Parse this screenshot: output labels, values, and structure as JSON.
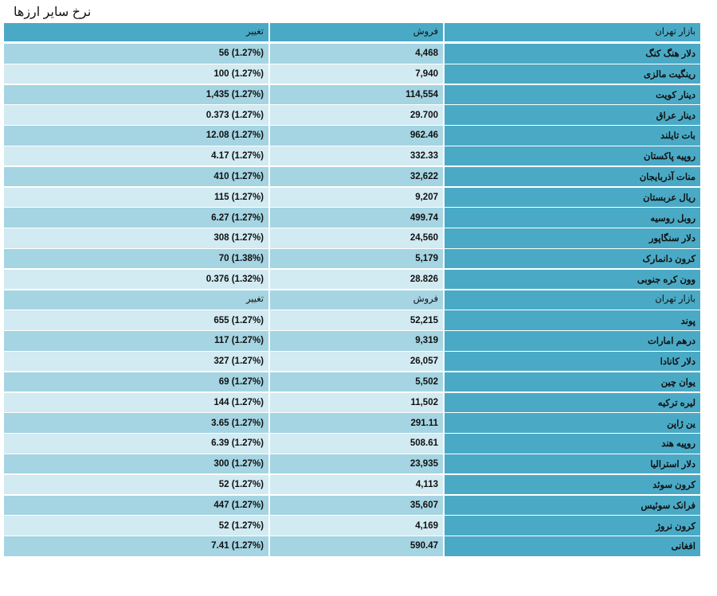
{
  "page": {
    "title": "نرخ سایر ارزها"
  },
  "table": {
    "header": {
      "market": "بازار تهران",
      "sell": "فروش",
      "change": "تغییر"
    },
    "rows_group1": [
      {
        "name": "دلار هنگ کنگ",
        "sell": "4,468",
        "change": "56 (1.27%)"
      },
      {
        "name": "رینگیت مالزی",
        "sell": "7,940",
        "change": "100 (1.27%)"
      },
      {
        "name": "دینار کویت",
        "sell": "114,554",
        "change": "1,435 (1.27%)"
      },
      {
        "name": "دینار عراق",
        "sell": "29.700",
        "change": "0.373 (1.27%)"
      },
      {
        "name": "بات تایلند",
        "sell": "962.46",
        "change": "12.08 (1.27%)"
      },
      {
        "name": "روپیه پاکستان",
        "sell": "332.33",
        "change": "4.17 (1.27%)"
      },
      {
        "name": "منات آذربایجان",
        "sell": "32,622",
        "change": "410 (1.27%)"
      },
      {
        "name": "ریال عربستان",
        "sell": "9,207",
        "change": "115 (1.27%)"
      },
      {
        "name": "روبل روسیه",
        "sell": "499.74",
        "change": "6.27 (1.27%)"
      },
      {
        "name": "دلار سنگاپور",
        "sell": "24,560",
        "change": "308 (1.27%)"
      },
      {
        "name": "کرون دانمارک",
        "sell": "5,179",
        "change": "70 (1.38%)"
      },
      {
        "name": "وون کره جنوبی",
        "sell": "28.826",
        "change": "0.376 (1.32%)"
      }
    ],
    "subheader": {
      "market": "بازار تهران",
      "sell": "فروش",
      "change": "تغییر"
    },
    "rows_group2": [
      {
        "name": "پوند",
        "sell": "52,215",
        "change": "655 (1.27%)"
      },
      {
        "name": "درهم امارات",
        "sell": "9,319",
        "change": "117 (1.27%)"
      },
      {
        "name": "دلار کانادا",
        "sell": "26,057",
        "change": "327 (1.27%)"
      },
      {
        "name": "یوان چین",
        "sell": "5,502",
        "change": "69 (1.27%)"
      },
      {
        "name": "لیره ترکیه",
        "sell": "11,502",
        "change": "144 (1.27%)"
      },
      {
        "name": "ین ژاپن",
        "sell": "291.11",
        "change": "3.65 (1.27%)"
      },
      {
        "name": "روپیه هند",
        "sell": "508.61",
        "change": "6.39 (1.27%)"
      },
      {
        "name": "دلار استرالیا",
        "sell": "23,935",
        "change": "300 (1.27%)"
      },
      {
        "name": "کرون سوئد",
        "sell": "4,113",
        "change": "52 (1.27%)"
      },
      {
        "name": "فرانک سوئیس",
        "sell": "35,607",
        "change": "447 (1.27%)"
      },
      {
        "name": "کرون نروژ",
        "sell": "4,169",
        "change": "52 (1.27%)"
      },
      {
        "name": "افغانی",
        "sell": "590.47",
        "change": "7.41 (1.27%)"
      }
    ]
  }
}
